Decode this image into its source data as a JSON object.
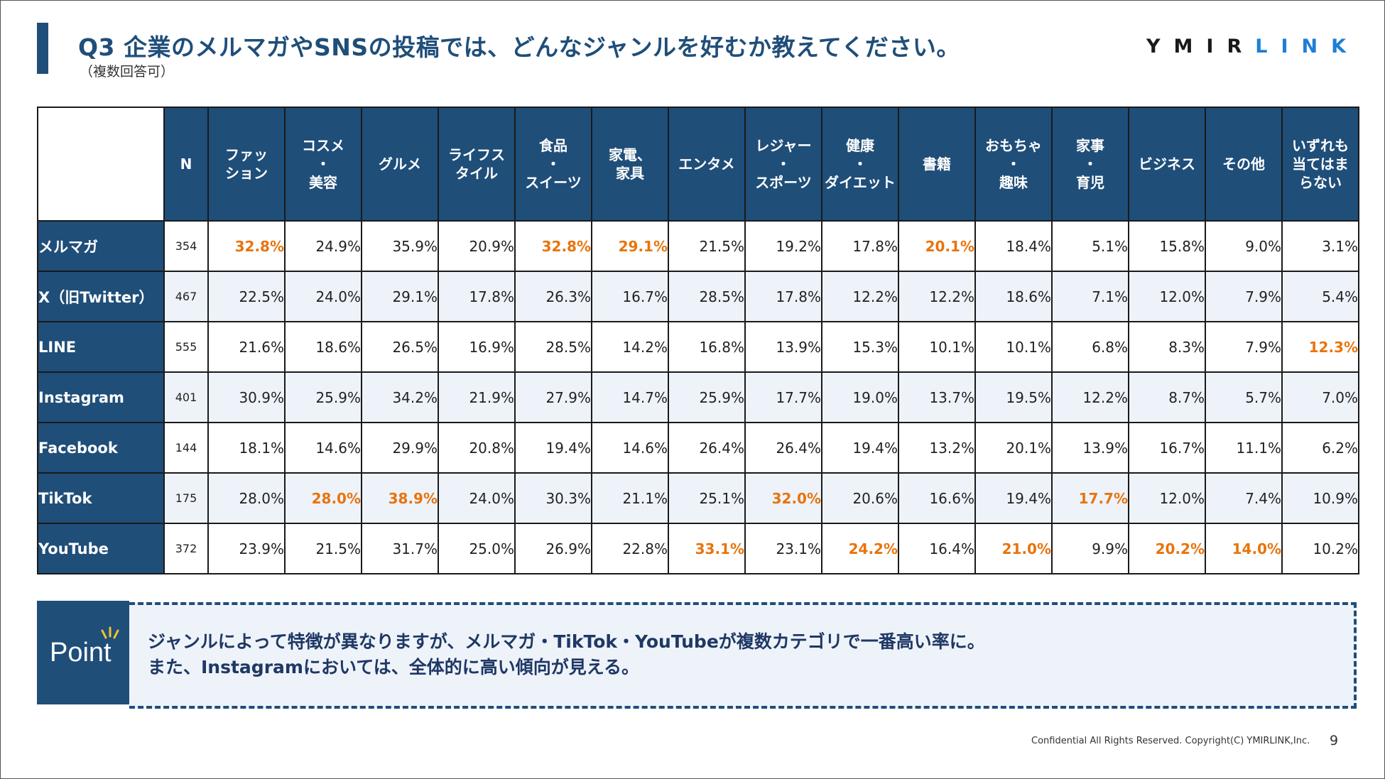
{
  "title": "Q3 企業のメルマガやSNSの投稿では、どんなジャンルを好むか教えてください。",
  "subtitle": "（複数回答可）",
  "logo": {
    "part1": "YMIR",
    "part2": "LINK",
    "color1": "#1a1a1a",
    "color2": "#1f7fd6"
  },
  "table": {
    "headers": [
      "N",
      "ファッ\nション",
      "コスメ\n・\n美容",
      "グルメ",
      "ライフス\nタイル",
      "食品\n・\nスイーツ",
      "家電、\n家具",
      "エンタメ",
      "レジャー\n・\nスポーツ",
      "健康\n・\nダイエット",
      "書籍",
      "おもちゃ\n・\n趣味",
      "家事\n・\n育児",
      "ビジネス",
      "その他",
      "いずれも\n当てはま\nらない"
    ],
    "highlight_color": "#e8740c",
    "rows": [
      {
        "label": "メルマガ",
        "n": "354",
        "values": [
          "32.8%",
          "24.9%",
          "35.9%",
          "20.9%",
          "32.8%",
          "29.1%",
          "21.5%",
          "19.2%",
          "17.8%",
          "20.1%",
          "18.4%",
          "5.1%",
          "15.8%",
          "9.0%",
          "3.1%"
        ],
        "highlight": [
          0,
          4,
          5,
          9
        ]
      },
      {
        "label": "X（旧Twitter）",
        "n": "467",
        "values": [
          "22.5%",
          "24.0%",
          "29.1%",
          "17.8%",
          "26.3%",
          "16.7%",
          "28.5%",
          "17.8%",
          "12.2%",
          "12.2%",
          "18.6%",
          "7.1%",
          "12.0%",
          "7.9%",
          "5.4%"
        ],
        "highlight": []
      },
      {
        "label": "LINE",
        "n": "555",
        "values": [
          "21.6%",
          "18.6%",
          "26.5%",
          "16.9%",
          "28.5%",
          "14.2%",
          "16.8%",
          "13.9%",
          "15.3%",
          "10.1%",
          "10.1%",
          "6.8%",
          "8.3%",
          "7.9%",
          "12.3%"
        ],
        "highlight": [
          14
        ]
      },
      {
        "label": "Instagram",
        "n": "401",
        "values": [
          "30.9%",
          "25.9%",
          "34.2%",
          "21.9%",
          "27.9%",
          "14.7%",
          "25.9%",
          "17.7%",
          "19.0%",
          "13.7%",
          "19.5%",
          "12.2%",
          "8.7%",
          "5.7%",
          "7.0%"
        ],
        "highlight": []
      },
      {
        "label": "Facebook",
        "n": "144",
        "values": [
          "18.1%",
          "14.6%",
          "29.9%",
          "20.8%",
          "19.4%",
          "14.6%",
          "26.4%",
          "26.4%",
          "19.4%",
          "13.2%",
          "20.1%",
          "13.9%",
          "16.7%",
          "11.1%",
          "6.2%"
        ],
        "highlight": []
      },
      {
        "label": "TikTok",
        "n": "175",
        "values": [
          "28.0%",
          "28.0%",
          "38.9%",
          "24.0%",
          "30.3%",
          "21.1%",
          "25.1%",
          "32.0%",
          "20.6%",
          "16.6%",
          "19.4%",
          "17.7%",
          "12.0%",
          "7.4%",
          "10.9%"
        ],
        "highlight": [
          1,
          2,
          7,
          11
        ]
      },
      {
        "label": "YouTube",
        "n": "372",
        "values": [
          "23.9%",
          "21.5%",
          "31.7%",
          "25.0%",
          "26.9%",
          "22.8%",
          "33.1%",
          "23.1%",
          "24.2%",
          "16.4%",
          "21.0%",
          "9.9%",
          "20.2%",
          "14.0%",
          "10.2%"
        ],
        "highlight": [
          6,
          8,
          10,
          12,
          13
        ]
      }
    ]
  },
  "point": {
    "label": "Point",
    "line1": "ジャンルによって特徴が異なりますが、メルマガ・TikTok・YouTubeが複数カテゴリで一番高い率に。",
    "line2": "また、Instagramにおいては、全体的に高い傾向が見える。"
  },
  "footer": "Confidential All Rights Reserved. Copyright(C) YMIRLINK,Inc.",
  "page_number": "9"
}
